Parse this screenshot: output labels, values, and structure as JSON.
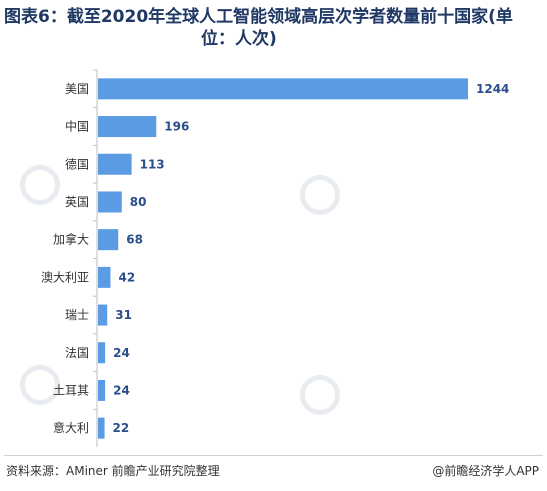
{
  "title_line1": "图表6：截至2020年全球人工智能领域高层次学者数量前十国家(单",
  "title_line2": "位：人次)",
  "source": "资料来源：AMiner 前瞻产业研究院整理",
  "brand": "@前瞻经济学人APP",
  "watermark": "前瞻产业研究院",
  "colors": {
    "bar": "#5b9be4",
    "axis": "#bfbfbf",
    "title": "#1f3864",
    "value": "#2b4e8c"
  },
  "chart_data": {
    "type": "bar",
    "orientation": "horizontal",
    "categories": [
      "美国",
      "中国",
      "德国",
      "英国",
      "加拿大",
      "澳大利亚",
      "瑞士",
      "法国",
      "土耳其",
      "意大利"
    ],
    "values": [
      1244,
      196,
      113,
      80,
      68,
      42,
      31,
      24,
      24,
      22
    ],
    "data_labels": [
      "1244",
      "196",
      "113",
      "80",
      "68",
      "42",
      "31",
      "24",
      "24",
      "22"
    ],
    "xlim": [
      0,
      1244
    ],
    "grid": false,
    "legend": "none"
  }
}
